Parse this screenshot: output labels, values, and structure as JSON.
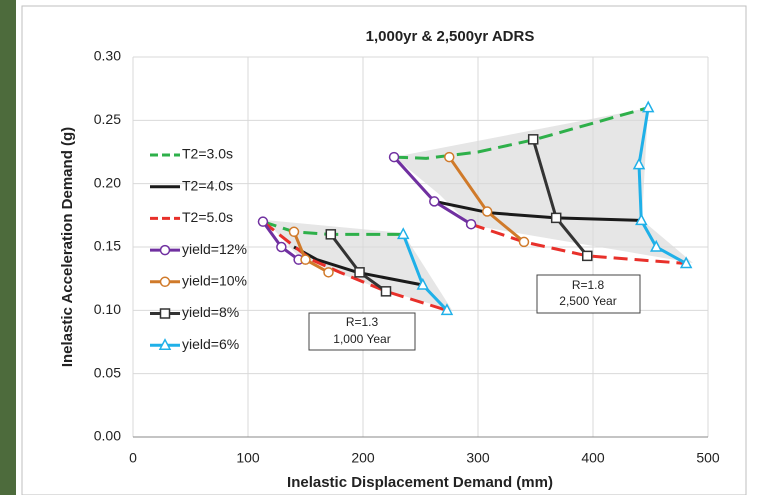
{
  "chart_data": {
    "type": "line",
    "title": "1,000yr & 2,500yr ADRS",
    "x_label": "Inelastic Displacement Demand (mm)",
    "y_label": "Inelastic Acceleration Demand (g)",
    "xlim": [
      0,
      500
    ],
    "xticks": [
      0,
      100,
      200,
      300,
      400,
      500
    ],
    "ylim": [
      0,
      0.3
    ],
    "yticks": [
      {
        "value": 0,
        "label": "0.00"
      },
      {
        "value": 0.05,
        "label": "0.05"
      },
      {
        "value": 0.1,
        "label": "0.10"
      },
      {
        "value": 0.15,
        "label": "0.15"
      },
      {
        "value": 0.2,
        "label": "0.20"
      },
      {
        "value": 0.25,
        "label": "0.25"
      },
      {
        "value": 0.3,
        "label": "0.30"
      }
    ],
    "grid": true,
    "legend": "left",
    "series": [
      {
        "name": "T2=3.0s",
        "color": "#2eb04a",
        "dash": true,
        "x": [
          113,
          140,
          170,
          235,
          null,
          227,
          255,
          300,
          350,
          448
        ],
        "values": [
          0.17,
          0.162,
          0.16,
          0.16,
          null,
          0.221,
          0.22,
          0.225,
          0.235,
          0.26
        ]
      },
      {
        "name": "T2=4.0s",
        "color": "#1a1a1a",
        "dash": false,
        "x": [
          140,
          160,
          195,
          252,
          null,
          262,
          310,
          368,
          440
        ],
        "values": [
          0.15,
          0.14,
          0.13,
          0.12,
          null,
          0.186,
          0.177,
          0.173,
          0.171
        ]
      },
      {
        "name": "T2=5.0s",
        "color": "#e8302a",
        "dash": true,
        "x": [
          113,
          155,
          180,
          220,
          273,
          null,
          294,
          340,
          395,
          481
        ],
        "values": [
          0.17,
          0.14,
          0.13,
          0.115,
          0.1,
          null,
          0.168,
          0.154,
          0.143,
          0.137
        ]
      },
      {
        "name": "yield=12%",
        "color": "#7030a0",
        "dash": false,
        "marker": "circle",
        "x": [
          113,
          129,
          144,
          null,
          227,
          262,
          294
        ],
        "values": [
          0.17,
          0.15,
          0.14,
          null,
          0.221,
          0.186,
          0.168
        ]
      },
      {
        "name": "yield=10%",
        "color": "#d07a2a",
        "dash": false,
        "marker": "circle",
        "x": [
          140,
          150,
          170,
          null,
          275,
          308,
          340
        ],
        "values": [
          0.162,
          0.14,
          0.13,
          null,
          0.221,
          0.178,
          0.154
        ]
      },
      {
        "name": "yield=8%",
        "color": "#333333",
        "dash": false,
        "marker": "square",
        "x": [
          172,
          197,
          220,
          null,
          348,
          368,
          395
        ],
        "values": [
          0.16,
          0.13,
          0.115,
          null,
          0.235,
          0.173,
          0.143
        ]
      },
      {
        "name": "yield=6%",
        "color": "#1fb0e8",
        "dash": false,
        "marker": "triangle",
        "x": [
          235,
          252,
          273,
          null,
          448,
          440,
          442,
          455,
          481
        ],
        "values": [
          0.16,
          0.12,
          0.1,
          null,
          0.26,
          0.215,
          0.171,
          0.15,
          0.137
        ]
      }
    ],
    "annotations": [
      [
        "R=1.3",
        "1,000 Year"
      ],
      [
        "R=1.8",
        "2,500 Year"
      ]
    ]
  }
}
